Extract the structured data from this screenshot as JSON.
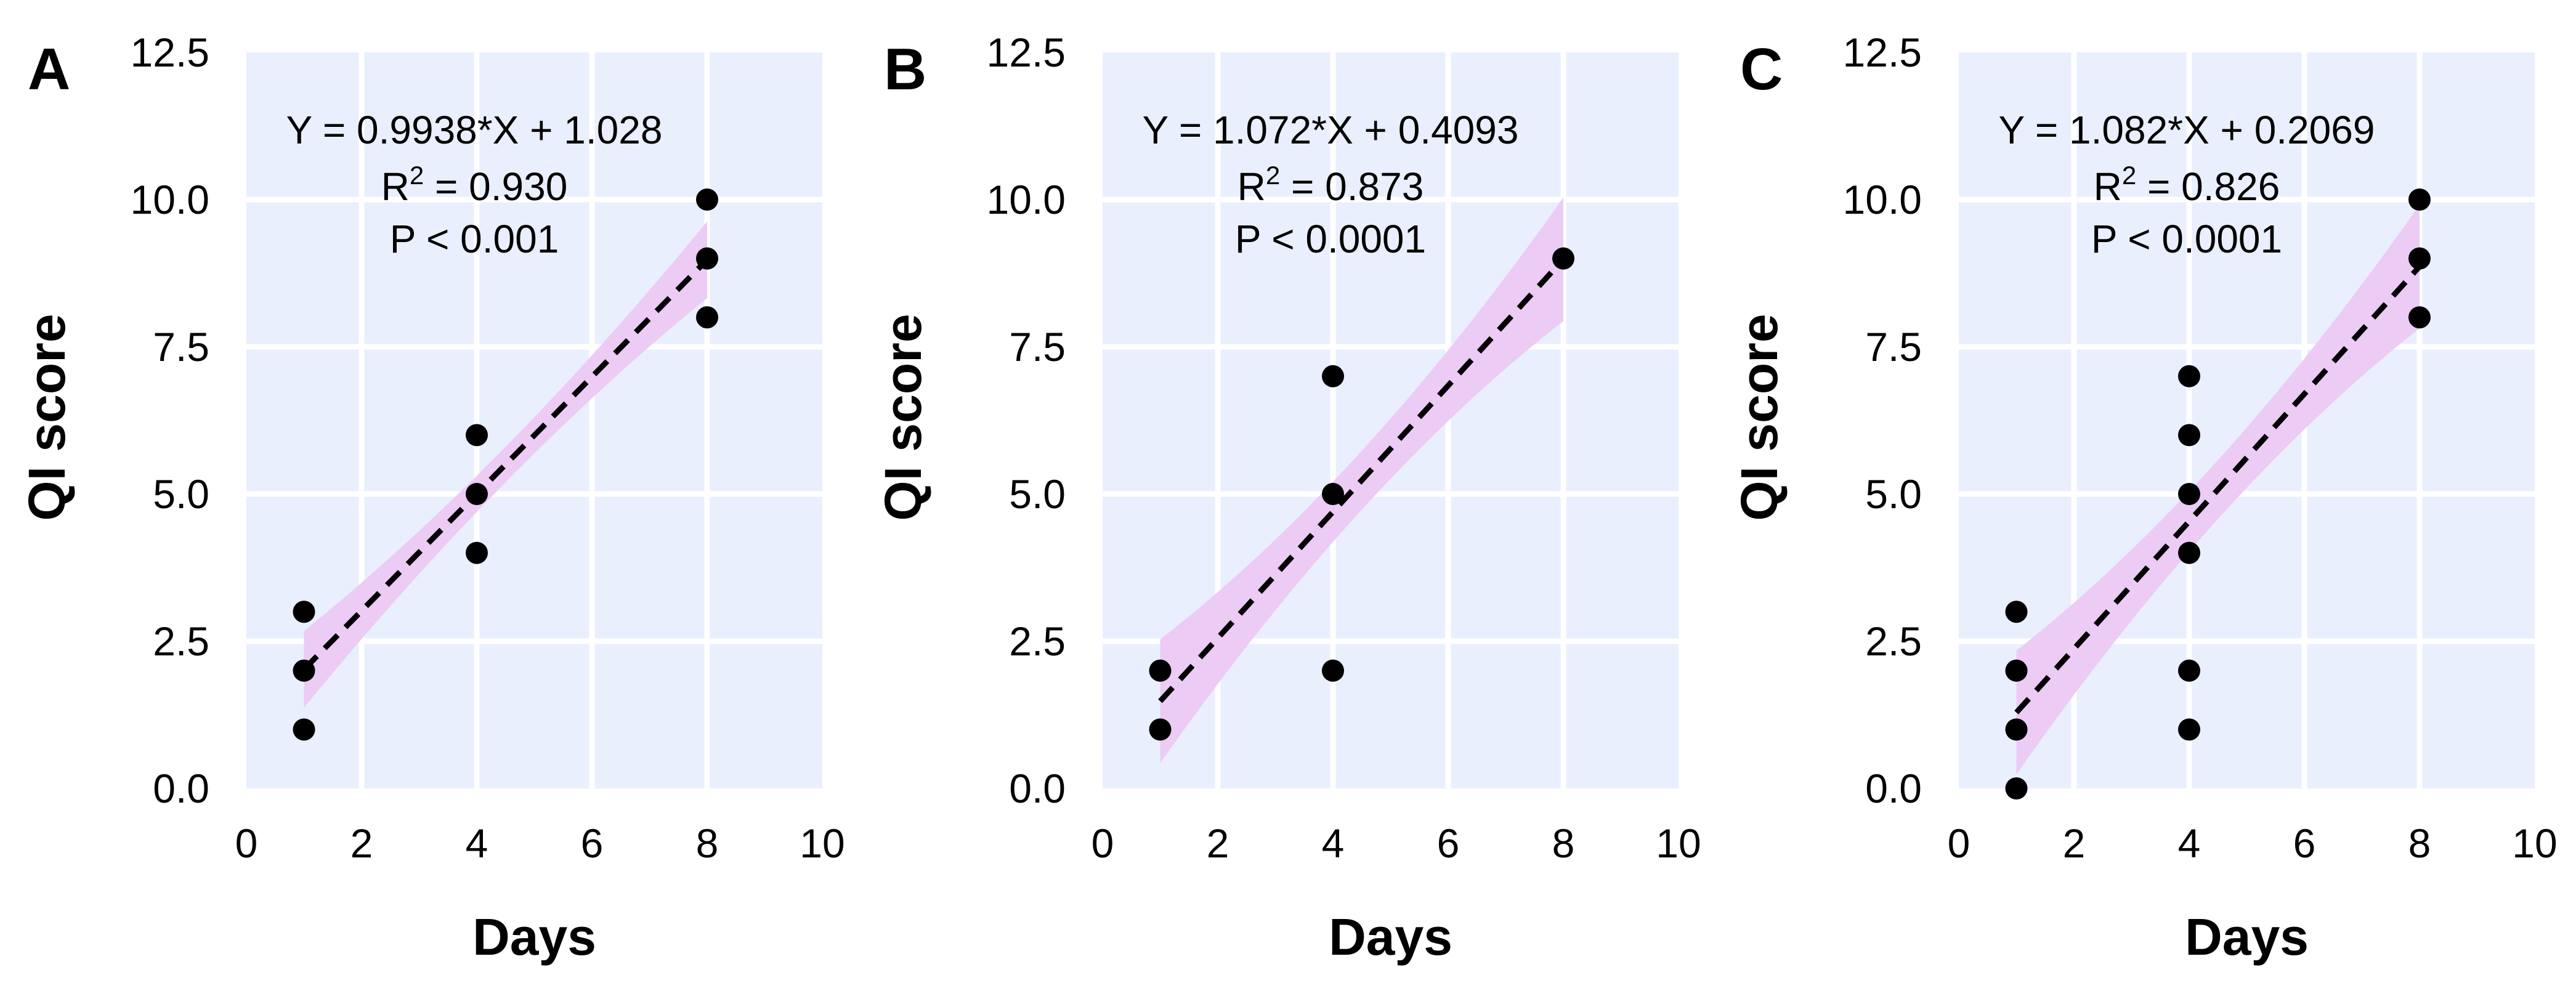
{
  "chart_data": [
    {
      "type": "scatter",
      "panel": "A",
      "xlabel": "Days",
      "ylabel": "QI score",
      "xlim": [
        0,
        10
      ],
      "ylim": [
        0,
        12.5
      ],
      "xticks": [
        "0",
        "2",
        "4",
        "6",
        "8",
        "10"
      ],
      "yticks": [
        "0.0",
        "2.5",
        "5.0",
        "7.5",
        "10.0",
        "12.5"
      ],
      "grid": true,
      "points": [
        {
          "x": 1,
          "y": 1
        },
        {
          "x": 1,
          "y": 2
        },
        {
          "x": 1,
          "y": 3
        },
        {
          "x": 4,
          "y": 4
        },
        {
          "x": 4,
          "y": 5
        },
        {
          "x": 4,
          "y": 6
        },
        {
          "x": 8,
          "y": 8
        },
        {
          "x": 8,
          "y": 9
        },
        {
          "x": 8,
          "y": 10
        }
      ],
      "fit": {
        "slope": 0.9938,
        "intercept": 1.028,
        "x_range": [
          1,
          8
        ],
        "ci_half_width_ends": 0.65,
        "ci_half_width_mid": 0.3
      },
      "annotation": {
        "equation": "Y = 0.9938*X + 1.028",
        "r2_prefix": "R",
        "r2_sup": "2",
        "r2_value": " = 0.930",
        "p_value": "P < 0.001"
      },
      "colors": {
        "background": "#e9effc",
        "ci_band": "#ecc8f4",
        "points": "#000000",
        "fit_line": "#000000"
      }
    },
    {
      "type": "scatter",
      "panel": "B",
      "xlabel": "Days",
      "ylabel": "QI score",
      "xlim": [
        0,
        10
      ],
      "ylim": [
        0,
        12.5
      ],
      "xticks": [
        "0",
        "2",
        "4",
        "6",
        "8",
        "10"
      ],
      "yticks": [
        "0.0",
        "2.5",
        "5.0",
        "7.5",
        "10.0",
        "12.5"
      ],
      "grid": true,
      "points": [
        {
          "x": 1,
          "y": 1
        },
        {
          "x": 1,
          "y": 2
        },
        {
          "x": 4,
          "y": 2
        },
        {
          "x": 4,
          "y": 5
        },
        {
          "x": 4,
          "y": 7
        },
        {
          "x": 8,
          "y": 9
        }
      ],
      "fit": {
        "slope": 1.072,
        "intercept": 0.4093,
        "x_range": [
          1,
          8
        ],
        "ci_half_width_ends": 1.05,
        "ci_half_width_mid": 0.5
      },
      "annotation": {
        "equation": "Y = 1.072*X + 0.4093",
        "r2_prefix": "R",
        "r2_sup": "2",
        "r2_value": " = 0.873",
        "p_value": "P < 0.0001"
      },
      "colors": {
        "background": "#e9effc",
        "ci_band": "#ecc8f4",
        "points": "#000000",
        "fit_line": "#000000"
      }
    },
    {
      "type": "scatter",
      "panel": "C",
      "xlabel": "Days",
      "ylabel": "QI score",
      "xlim": [
        0,
        10
      ],
      "ylim": [
        0,
        12.5
      ],
      "xticks": [
        "0",
        "2",
        "4",
        "6",
        "8",
        "10"
      ],
      "yticks": [
        "0.0",
        "2.5",
        "5.0",
        "7.5",
        "10.0",
        "12.5"
      ],
      "grid": true,
      "points": [
        {
          "x": 1,
          "y": 0
        },
        {
          "x": 1,
          "y": 1
        },
        {
          "x": 1,
          "y": 2
        },
        {
          "x": 1,
          "y": 3
        },
        {
          "x": 4,
          "y": 1
        },
        {
          "x": 4,
          "y": 2
        },
        {
          "x": 4,
          "y": 4
        },
        {
          "x": 4,
          "y": 5
        },
        {
          "x": 4,
          "y": 6
        },
        {
          "x": 4,
          "y": 7
        },
        {
          "x": 8,
          "y": 8
        },
        {
          "x": 8,
          "y": 9
        },
        {
          "x": 8,
          "y": 10
        }
      ],
      "fit": {
        "slope": 1.082,
        "intercept": 0.2069,
        "x_range": [
          1,
          8
        ],
        "ci_half_width_ends": 1.05,
        "ci_half_width_mid": 0.5
      },
      "annotation": {
        "equation": "Y = 1.082*X + 0.2069",
        "r2_prefix": "R",
        "r2_sup": "2",
        "r2_value": " = 0.826",
        "p_value": "P < 0.0001"
      },
      "colors": {
        "background": "#e9effc",
        "ci_band": "#ecc8f4",
        "points": "#000000",
        "fit_line": "#000000"
      }
    }
  ]
}
